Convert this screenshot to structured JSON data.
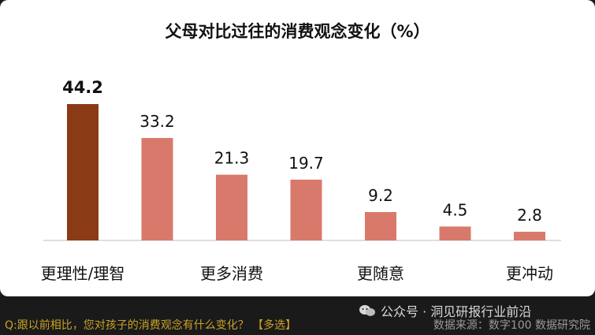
{
  "chart_data": {
    "type": "bar",
    "title": "父母对比过往的消费观念变化（%）",
    "categories": [
      "更理性/理智",
      "",
      "更多消费",
      "",
      "更随意",
      "",
      "更冲动"
    ],
    "values": [
      44.2,
      33.2,
      21.3,
      19.7,
      9.2,
      4.5,
      2.8
    ],
    "value_labels": [
      "44.2",
      "33.2",
      "21.3",
      "19.7",
      "9.2",
      "4.5",
      "2.8"
    ],
    "highlight_index": 0,
    "ylim": [
      0,
      50
    ],
    "grid": false,
    "colors": {
      "highlight": "#8b3a16",
      "normal": "#d9796b",
      "axis": "#bfbfbf"
    }
  },
  "footer": {
    "question": "Q:跟以前相比，您对孩子的消费观念有什么变化？ 【多选】",
    "source": "数据来源：数字100 数据研究院",
    "watermark": "公众号 · 洞见研报行业前沿",
    "watermark_icon": "wechat-icon"
  }
}
